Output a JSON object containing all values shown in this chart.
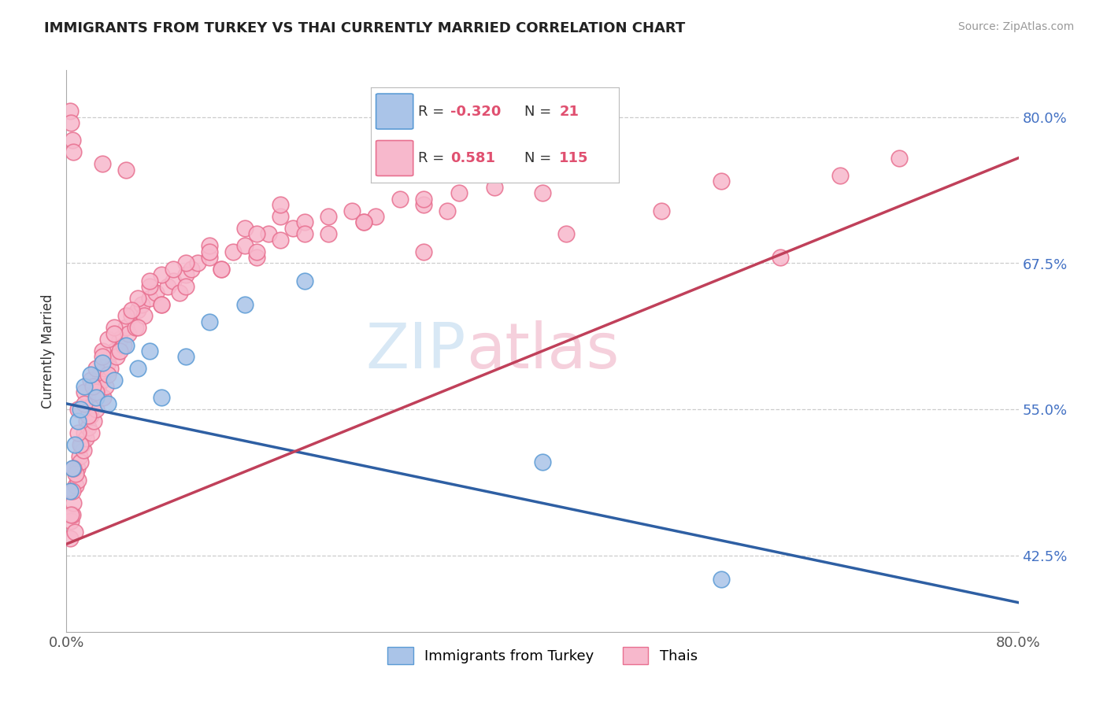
{
  "title": "IMMIGRANTS FROM TURKEY VS THAI CURRENTLY MARRIED CORRELATION CHART",
  "source_text": "Source: ZipAtlas.com",
  "ylabel": "Currently Married",
  "xmin": 0.0,
  "xmax": 80.0,
  "ymin": 36.0,
  "ymax": 84.0,
  "yticks": [
    42.5,
    55.0,
    67.5,
    80.0
  ],
  "xtick_labels": [
    "0.0%",
    "80.0%"
  ],
  "ytick_labels": [
    "42.5%",
    "55.0%",
    "67.5%",
    "80.0%"
  ],
  "turkey_color": "#aac4e8",
  "thai_color": "#f7b8cc",
  "turkey_edge_color": "#5b9bd5",
  "thai_edge_color": "#e87090",
  "turkey_line_color": "#2e5fa3",
  "thai_line_color": "#c0405a",
  "background_color": "#ffffff",
  "watermark_color": "#d8e8f5",
  "watermark_color2": "#f5d0dc",
  "turkey_line_x0": 0.0,
  "turkey_line_y0": 55.5,
  "turkey_line_x1": 80.0,
  "turkey_line_y1": 38.5,
  "thai_line_x0": 0.0,
  "thai_line_y0": 43.5,
  "thai_line_x1": 80.0,
  "thai_line_y1": 76.5,
  "turkey_scatter": [
    [
      0.3,
      48.0
    ],
    [
      0.5,
      50.0
    ],
    [
      0.7,
      52.0
    ],
    [
      1.0,
      54.0
    ],
    [
      1.2,
      55.0
    ],
    [
      1.5,
      57.0
    ],
    [
      2.0,
      58.0
    ],
    [
      2.5,
      56.0
    ],
    [
      3.0,
      59.0
    ],
    [
      3.5,
      55.5
    ],
    [
      4.0,
      57.5
    ],
    [
      5.0,
      60.5
    ],
    [
      6.0,
      58.5
    ],
    [
      7.0,
      60.0
    ],
    [
      8.0,
      56.0
    ],
    [
      10.0,
      59.5
    ],
    [
      12.0,
      62.5
    ],
    [
      15.0,
      64.0
    ],
    [
      20.0,
      66.0
    ],
    [
      40.0,
      50.5
    ],
    [
      55.0,
      40.5
    ]
  ],
  "thai_scatter": [
    [
      0.3,
      44.0
    ],
    [
      0.4,
      45.5
    ],
    [
      0.5,
      46.0
    ],
    [
      0.6,
      47.0
    ],
    [
      0.7,
      44.5
    ],
    [
      0.8,
      48.5
    ],
    [
      0.9,
      50.0
    ],
    [
      1.0,
      49.0
    ],
    [
      1.1,
      51.0
    ],
    [
      1.2,
      50.5
    ],
    [
      1.3,
      52.0
    ],
    [
      1.4,
      51.5
    ],
    [
      1.5,
      53.0
    ],
    [
      1.6,
      52.5
    ],
    [
      1.7,
      54.0
    ],
    [
      1.8,
      53.5
    ],
    [
      2.0,
      54.5
    ],
    [
      2.1,
      53.0
    ],
    [
      2.2,
      55.5
    ],
    [
      2.3,
      54.0
    ],
    [
      2.4,
      56.0
    ],
    [
      2.5,
      55.0
    ],
    [
      2.6,
      57.0
    ],
    [
      2.7,
      56.5
    ],
    [
      2.8,
      58.0
    ],
    [
      3.0,
      57.5
    ],
    [
      3.1,
      56.0
    ],
    [
      3.2,
      58.5
    ],
    [
      3.3,
      57.0
    ],
    [
      3.5,
      59.0
    ],
    [
      3.7,
      58.5
    ],
    [
      4.0,
      60.0
    ],
    [
      4.2,
      59.5
    ],
    [
      4.5,
      61.0
    ],
    [
      4.8,
      60.5
    ],
    [
      5.0,
      62.0
    ],
    [
      5.2,
      61.5
    ],
    [
      5.5,
      63.0
    ],
    [
      5.8,
      62.0
    ],
    [
      6.0,
      63.5
    ],
    [
      6.3,
      64.0
    ],
    [
      6.5,
      63.0
    ],
    [
      7.0,
      64.5
    ],
    [
      7.5,
      65.0
    ],
    [
      8.0,
      64.0
    ],
    [
      8.5,
      65.5
    ],
    [
      9.0,
      66.0
    ],
    [
      9.5,
      65.0
    ],
    [
      10.0,
      66.5
    ],
    [
      10.5,
      67.0
    ],
    [
      11.0,
      67.5
    ],
    [
      12.0,
      68.0
    ],
    [
      13.0,
      67.0
    ],
    [
      14.0,
      68.5
    ],
    [
      15.0,
      69.0
    ],
    [
      16.0,
      68.0
    ],
    [
      17.0,
      70.0
    ],
    [
      18.0,
      69.5
    ],
    [
      19.0,
      70.5
    ],
    [
      20.0,
      71.0
    ],
    [
      22.0,
      70.0
    ],
    [
      24.0,
      72.0
    ],
    [
      26.0,
      71.5
    ],
    [
      28.0,
      73.0
    ],
    [
      30.0,
      72.5
    ],
    [
      33.0,
      73.5
    ],
    [
      36.0,
      74.0
    ],
    [
      40.0,
      73.5
    ],
    [
      45.0,
      76.0
    ],
    [
      50.0,
      72.0
    ],
    [
      55.0,
      74.5
    ],
    [
      60.0,
      68.0
    ],
    [
      65.0,
      75.0
    ],
    [
      70.0,
      76.5
    ],
    [
      1.0,
      55.0
    ],
    [
      1.5,
      56.5
    ],
    [
      2.0,
      57.5
    ],
    [
      2.5,
      58.5
    ],
    [
      3.0,
      60.0
    ],
    [
      3.5,
      61.0
    ],
    [
      4.0,
      62.0
    ],
    [
      5.0,
      63.0
    ],
    [
      6.0,
      64.5
    ],
    [
      7.0,
      65.5
    ],
    [
      8.0,
      66.5
    ],
    [
      10.0,
      67.5
    ],
    [
      12.0,
      69.0
    ],
    [
      15.0,
      70.5
    ],
    [
      18.0,
      71.5
    ],
    [
      0.5,
      48.0
    ],
    [
      0.8,
      49.5
    ],
    [
      1.2,
      52.0
    ],
    [
      1.8,
      54.5
    ],
    [
      2.5,
      56.5
    ],
    [
      3.5,
      58.0
    ],
    [
      4.5,
      60.0
    ],
    [
      6.0,
      62.0
    ],
    [
      8.0,
      64.0
    ],
    [
      10.0,
      65.5
    ],
    [
      13.0,
      67.0
    ],
    [
      16.0,
      68.5
    ],
    [
      20.0,
      70.0
    ],
    [
      25.0,
      71.0
    ],
    [
      32.0,
      72.0
    ],
    [
      0.4,
      46.0
    ],
    [
      0.6,
      50.0
    ],
    [
      1.0,
      53.0
    ],
    [
      1.5,
      55.5
    ],
    [
      2.2,
      57.0
    ],
    [
      3.0,
      59.5
    ],
    [
      4.0,
      61.5
    ],
    [
      5.5,
      63.5
    ],
    [
      7.0,
      66.0
    ],
    [
      9.0,
      67.0
    ],
    [
      12.0,
      68.5
    ],
    [
      16.0,
      70.0
    ],
    [
      22.0,
      71.5
    ],
    [
      30.0,
      73.0
    ],
    [
      42.0,
      70.0
    ],
    [
      0.3,
      80.5
    ],
    [
      0.5,
      78.0
    ],
    [
      0.4,
      79.5
    ],
    [
      3.0,
      76.0
    ],
    [
      5.0,
      75.5
    ],
    [
      25.0,
      71.0
    ],
    [
      30.0,
      68.5
    ],
    [
      18.0,
      72.5
    ],
    [
      0.6,
      77.0
    ]
  ]
}
